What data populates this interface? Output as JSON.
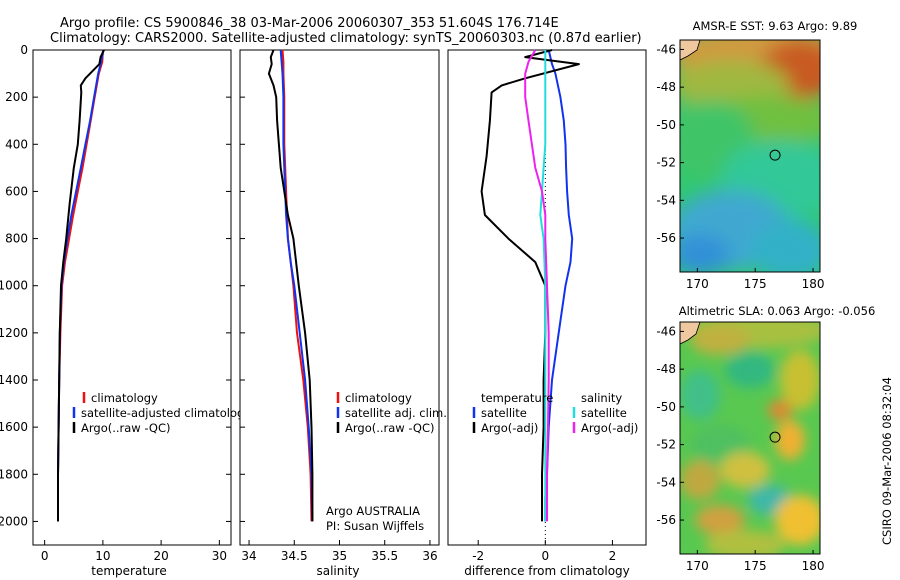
{
  "header": {
    "line1": "Argo profile: CS 5900846_38 03-Mar-2006 20060307_353 51.604S 176.714E",
    "line2": "Climatology: CARS2000. Satellite-adjusted climatology: synTS_20060303.nc (0.87d earlier)"
  },
  "side_label": "CSIRO 09-Mar-2006 08:32:04",
  "colors": {
    "climatology": "#ee1111",
    "satellite": "#1133ee",
    "argo": "#000000",
    "sal_satellite": "#22dddd",
    "sal_argo": "#ee22ee"
  },
  "chart_data": [
    {
      "type": "line",
      "id": "temperature-profile",
      "xlabel": "temperature",
      "ylabel": "",
      "xlim": [
        -2,
        32
      ],
      "ylim": [
        0,
        2100
      ],
      "y_reversed": true,
      "xticks": [
        0,
        10,
        20,
        30
      ],
      "xtick_labels": [
        "0",
        "10",
        "20",
        "30"
      ],
      "yticks": [
        0,
        200,
        400,
        600,
        800,
        1000,
        1200,
        1400,
        1600,
        1800,
        2000
      ],
      "ytick_labels": [
        "0",
        "200",
        "400",
        "600",
        "800",
        "1000",
        "1200",
        "1400",
        "1600",
        "1800",
        "2000"
      ],
      "series": [
        {
          "name": "climatology",
          "color_key": "climatology",
          "x": [
            10.0,
            9.9,
            9.3,
            8.6,
            7.9,
            7.2,
            6.5,
            5.7,
            4.9,
            4.2,
            3.5,
            3.0,
            2.7,
            2.5,
            2.4,
            2.3,
            2.3,
            2.3
          ],
          "y": [
            0,
            50,
            100,
            200,
            300,
            400,
            500,
            600,
            700,
            800,
            900,
            1000,
            1200,
            1400,
            1600,
            1800,
            1900,
            2000
          ]
        },
        {
          "name": "satellite-adjusted climatology",
          "color_key": "satellite",
          "x": [
            10.1,
            9.7,
            9.2,
            8.5,
            7.8,
            7.0,
            6.2,
            5.4,
            4.6,
            3.9,
            3.3,
            2.9,
            2.6,
            2.5,
            2.4,
            2.3,
            2.3,
            2.3
          ],
          "y": [
            0,
            50,
            100,
            200,
            300,
            400,
            500,
            600,
            700,
            800,
            900,
            1000,
            1200,
            1400,
            1600,
            1800,
            1900,
            2000
          ]
        },
        {
          "name": "Argo(..raw -QC)",
          "color_key": "argo",
          "x": [
            10.2,
            9.6,
            9.4,
            7.0,
            6.2,
            6.3,
            6.0,
            5.7,
            5.0,
            4.3,
            3.7,
            3.2,
            2.8,
            2.6,
            2.5,
            2.4,
            2.3,
            2.3,
            2.3
          ],
          "y": [
            0,
            30,
            60,
            120,
            150,
            180,
            300,
            400,
            500,
            650,
            800,
            900,
            1000,
            1200,
            1400,
            1600,
            1800,
            1900,
            2000
          ]
        }
      ],
      "legend": [
        "climatology",
        "satellite-adjusted climatology",
        "Argo(..raw -QC)"
      ],
      "legend_position": "bottom-right"
    },
    {
      "type": "line",
      "id": "salinity-profile",
      "xlabel": "salinity",
      "xlim": [
        33.9,
        36.1
      ],
      "ylim": [
        0,
        2100
      ],
      "y_reversed": true,
      "xticks": [
        34,
        34.5,
        35,
        35.5,
        36
      ],
      "xtick_labels": [
        "34",
        "34.5",
        "35",
        "35.5",
        "36"
      ],
      "series": [
        {
          "name": "climatology",
          "color_key": "climatology",
          "x": [
            34.37,
            34.38,
            34.38,
            34.39,
            34.39,
            34.4,
            34.41,
            34.42,
            34.43,
            34.46,
            34.49,
            34.53,
            34.6,
            34.65,
            34.68,
            34.69
          ],
          "y": [
            0,
            50,
            100,
            200,
            400,
            500,
            600,
            700,
            800,
            900,
            1000,
            1200,
            1400,
            1600,
            1800,
            2000
          ]
        },
        {
          "name": "satellite adj. clim.",
          "color_key": "satellite",
          "x": [
            34.35,
            34.36,
            34.37,
            34.38,
            34.38,
            34.39,
            34.4,
            34.41,
            34.43,
            34.46,
            34.5,
            34.56,
            34.62,
            34.66,
            34.69,
            34.7
          ],
          "y": [
            0,
            50,
            100,
            200,
            400,
            500,
            600,
            700,
            800,
            900,
            1000,
            1200,
            1400,
            1600,
            1800,
            2000
          ]
        },
        {
          "name": "Argo(..raw -QC)",
          "color_key": "argo",
          "x": [
            34.27,
            34.24,
            34.25,
            34.22,
            34.27,
            34.3,
            34.31,
            34.33,
            34.35,
            34.39,
            34.43,
            34.49,
            34.55,
            34.62,
            34.67,
            34.69,
            34.7,
            34.7
          ],
          "y": [
            0,
            30,
            60,
            100,
            150,
            200,
            300,
            400,
            500,
            600,
            700,
            800,
            1000,
            1200,
            1400,
            1600,
            1800,
            2000
          ]
        }
      ],
      "legend": [
        "climatology",
        "satellite adj. clim.",
        "Argo(..raw -QC)"
      ],
      "legend_position": "bottom-right",
      "annotation": [
        "Argo AUSTRALIA",
        "PI: Susan Wijffels"
      ]
    },
    {
      "type": "line",
      "id": "difference-profile",
      "xlabel": "difference from climatology",
      "xlim": [
        -2.9,
        3.0
      ],
      "ylim": [
        0,
        2100
      ],
      "y_reversed": true,
      "xticks": [
        -2,
        0,
        2
      ],
      "xtick_labels": [
        "-2",
        "0",
        "2"
      ],
      "series": [
        {
          "name": "temperature satellite",
          "color_key": "satellite",
          "x": [
            0.1,
            0.2,
            0.3,
            0.45,
            0.55,
            0.6,
            0.62,
            0.65,
            0.7,
            0.8,
            0.75,
            0.6,
            0.4,
            0.2,
            0.1,
            0.05,
            0.0,
            0.0
          ],
          "y": [
            0,
            60,
            100,
            200,
            300,
            400,
            500,
            600,
            700,
            800,
            900,
            1000,
            1200,
            1400,
            1600,
            1800,
            1900,
            2000
          ]
        },
        {
          "name": "temperature Argo(-adj)",
          "color_key": "argo",
          "x": [
            0.2,
            -0.6,
            1.0,
            -0.6,
            -1.3,
            -1.6,
            -1.65,
            -1.75,
            -1.9,
            -1.8,
            -1.1,
            -0.3,
            0.0,
            0.0,
            -0.05,
            -0.05,
            -0.1,
            -0.1
          ],
          "y": [
            0,
            30,
            60,
            120,
            150,
            180,
            300,
            450,
            600,
            700,
            800,
            900,
            1000,
            1200,
            1400,
            1600,
            1800,
            2000
          ]
        },
        {
          "name": "salinity satellite",
          "color_key": "sal_satellite",
          "x": [
            0.0,
            0.0,
            0.0,
            0.0,
            0.0,
            -0.05,
            -0.1,
            -0.15,
            -0.05,
            0.0,
            0.0,
            0.0,
            0.0,
            0.0,
            0.0
          ],
          "y": [
            0,
            100,
            200,
            300,
            400,
            500,
            600,
            700,
            800,
            1000,
            1200,
            1400,
            1600,
            1800,
            2000
          ]
        },
        {
          "name": "salinity Argo(-adj)",
          "color_key": "sal_argo",
          "x": [
            -0.3,
            -0.5,
            -0.6,
            -0.6,
            -0.5,
            -0.4,
            -0.3,
            -0.1,
            0.0,
            0.0,
            0.05,
            0.1,
            0.1,
            0.08,
            0.05,
            0.05
          ],
          "y": [
            0,
            50,
            100,
            200,
            300,
            400,
            500,
            600,
            700,
            800,
            1000,
            1200,
            1400,
            1600,
            1800,
            2000
          ]
        }
      ],
      "legend": {
        "temperature_title": "temperature",
        "salinity_title": "salinity",
        "items": [
          "satellite",
          "Argo(-adj)",
          "satellite",
          "Argo(-adj)"
        ]
      },
      "legend_position": "bottom"
    },
    {
      "type": "heatmap",
      "id": "sst-map",
      "title": "AMSR-E SST: 9.63 Argo: 9.89",
      "xlim": [
        168.5,
        183
      ],
      "ylim": [
        -57.8,
        -45.5
      ],
      "xticks": [
        170,
        175,
        180
      ],
      "yticks": [
        -46,
        -48,
        -50,
        -52,
        -54,
        -56
      ],
      "marker": {
        "lon": 176.714,
        "lat": -51.604
      }
    },
    {
      "type": "heatmap",
      "id": "sla-map",
      "title": "Altimetric SLA: 0.063 Argo: -0.056",
      "xlim": [
        168.5,
        183
      ],
      "ylim": [
        -57.8,
        -45.5
      ],
      "xticks": [
        170,
        175,
        180
      ],
      "yticks": [
        -46,
        -48,
        -50,
        -52,
        -54,
        -56
      ],
      "marker": {
        "lon": 176.714,
        "lat": -51.604
      }
    }
  ]
}
